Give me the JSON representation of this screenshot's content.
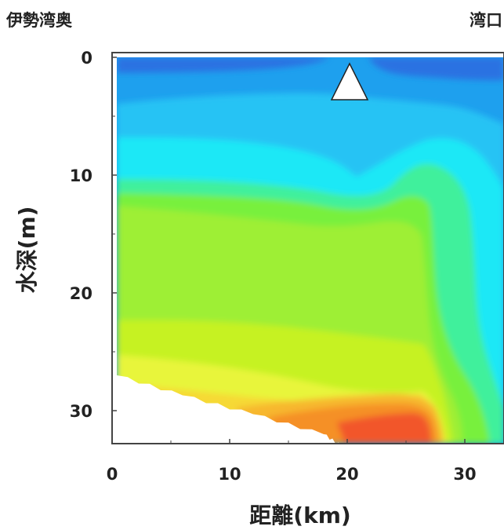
{
  "labels": {
    "left": "伊勢湾奥",
    "right": "湾口"
  },
  "chart_data": {
    "type": "contour",
    "xlabel": "距離(km)",
    "ylabel": "水深(m)",
    "xlim": [
      0,
      33
    ],
    "ylim": [
      0,
      33
    ],
    "y_inverted": true,
    "x_ticks": [
      0,
      10,
      20,
      30
    ],
    "y_ticks": [
      0,
      10,
      20,
      30
    ],
    "legend": "none",
    "grid": false,
    "marker": {
      "shape": "triangle",
      "x": 20.2,
      "y": 2,
      "color": "#ffffff"
    },
    "bottom_profile": [
      [
        0,
        27
      ],
      [
        6,
        28.7
      ],
      [
        12,
        30.3
      ],
      [
        18,
        32
      ],
      [
        19.5,
        33
      ]
    ],
    "contour_colors": [
      "#2a78e4",
      "#1f9fee",
      "#27c3f4",
      "#1ee8f6",
      "#3ef0a6",
      "#7cf03b",
      "#a8f23a",
      "#c6f224",
      "#e6f53a",
      "#f6e43a",
      "#f7bd2e",
      "#f59226",
      "#f2572a"
    ]
  }
}
